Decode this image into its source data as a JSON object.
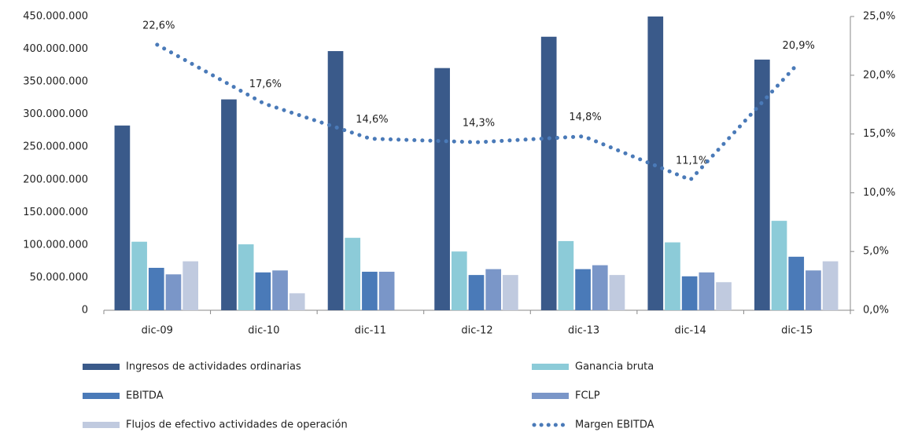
{
  "chart_data": {
    "type": "bar-line",
    "categories": [
      "dic-09",
      "dic-10",
      "dic-11",
      "dic-12",
      "dic-13",
      "dic-14",
      "dic-15"
    ],
    "series": [
      {
        "name": "Ingresos de actividades ordinarias",
        "color": "#3a5a8a",
        "values": [
          283000000,
          323000000,
          397000000,
          371000000,
          419000000,
          450000000,
          384000000
        ]
      },
      {
        "name": "Ganancia bruta",
        "color": "#8ccbd8",
        "values": [
          105000000,
          101000000,
          111000000,
          90000000,
          106000000,
          104000000,
          137000000
        ]
      },
      {
        "name": "EBITDA",
        "color": "#4a7ab8",
        "values": [
          65000000,
          58000000,
          59000000,
          54000000,
          63000000,
          52000000,
          82000000
        ]
      },
      {
        "name": "FCLP",
        "color": "#7a96c8",
        "values": [
          55000000,
          61000000,
          59000000,
          63000000,
          69000000,
          58000000,
          61000000
        ]
      },
      {
        "name": "Flujos de efectivo actividades de operación",
        "color": "#c0cadf",
        "values": [
          75000000,
          26000000,
          null,
          54000000,
          54000000,
          43000000,
          75000000
        ]
      },
      {
        "name": "Margen EBITDA",
        "color": "#4a7ab8",
        "axis": "y2",
        "type": "line",
        "values": [
          22.6,
          17.6,
          14.6,
          14.3,
          14.8,
          11.1,
          20.9
        ],
        "value_labels": [
          "22,6%",
          "17,6%",
          "14,6%",
          "14,3%",
          "14,8%",
          "11,1%",
          "20,9%"
        ]
      }
    ],
    "ylim": [
      0,
      450000000
    ],
    "yticks": [
      0,
      {
        "value": 50000000,
        "label": "50.000.000"
      },
      {
        "value": 100000000,
        "label": "100.000.000"
      },
      {
        "value": 150000000,
        "label": "150.000.000"
      },
      {
        "value": 200000000,
        "label": "200.000.000"
      },
      {
        "value": 250000000,
        "label": "250.000.000"
      },
      {
        "value": 300000000,
        "label": "300.000.000"
      },
      {
        "value": 350000000,
        "label": "350.000.000"
      },
      {
        "value": 400000000,
        "label": "400.000.000"
      },
      {
        "value": 450000000,
        "label": "450.000.000"
      }
    ],
    "y2lim": [
      0,
      25
    ],
    "y2ticks": [
      {
        "value": 0,
        "label": "0,0%"
      },
      {
        "value": 5,
        "label": "5,0%"
      },
      {
        "value": 10,
        "label": "10,0%"
      },
      {
        "value": 15,
        "label": "15,0%"
      },
      {
        "value": 20,
        "label": "20,0%"
      },
      {
        "value": 25,
        "label": "25,0%"
      }
    ],
    "grid": false
  }
}
